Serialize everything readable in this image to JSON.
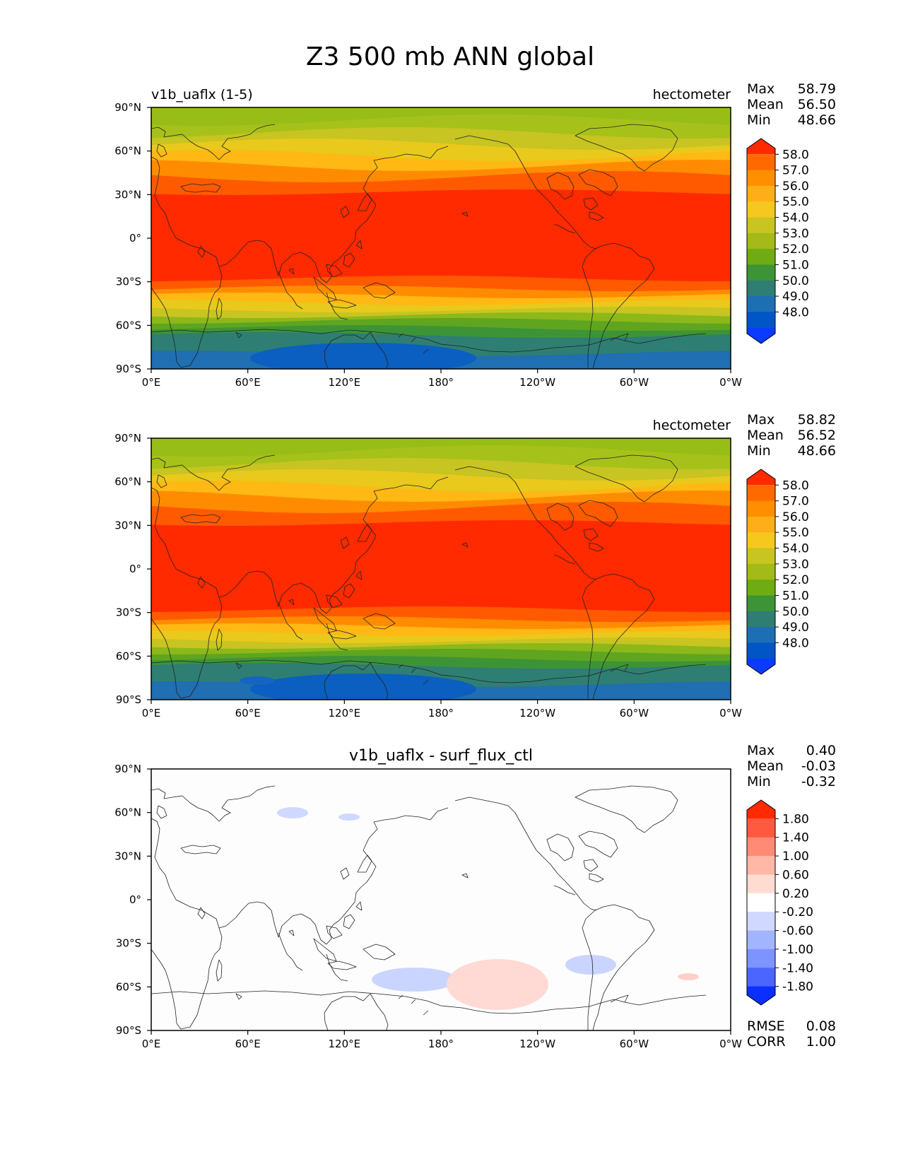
{
  "figure": {
    "title": "Z3 500 mb ANN global",
    "x_ticks": [
      "0°E",
      "60°E",
      "120°E",
      "180°",
      "120°W",
      "60°W",
      "0°W"
    ],
    "y_ticks": [
      "90°N",
      "60°N",
      "30°N",
      "0°",
      "30°S",
      "60°S",
      "90°S"
    ]
  },
  "panels": [
    {
      "left_title": "v1b_uaflx (1-5)",
      "center_title": "",
      "units": "hectometer",
      "stats": [
        {
          "label": "Max",
          "value": "58.79"
        },
        {
          "label": "Mean",
          "value": "56.50"
        },
        {
          "label": "Min",
          "value": "48.66"
        }
      ],
      "colorbar": {
        "labels": [
          "58.0",
          "57.0",
          "56.0",
          "55.0",
          "54.0",
          "53.0",
          "52.0",
          "51.0",
          "50.0",
          "49.0",
          "48.0"
        ],
        "colors": [
          "#ff2a00",
          "#ff6a00",
          "#ff8f00",
          "#ffae1a",
          "#f5c71f",
          "#c8c421",
          "#a3ba18",
          "#6fab12",
          "#3d9436",
          "#2e7e73",
          "#1c6fb4",
          "#0056c4",
          "#0b3bff"
        ]
      },
      "bottom_stats": []
    },
    {
      "left_title": "",
      "center_title": "",
      "units": "hectometer",
      "stats": [
        {
          "label": "Max",
          "value": "58.82"
        },
        {
          "label": "Mean",
          "value": "56.52"
        },
        {
          "label": "Min",
          "value": "48.66"
        }
      ],
      "colorbar": {
        "labels": [
          "58.0",
          "57.0",
          "56.0",
          "55.0",
          "54.0",
          "53.0",
          "52.0",
          "51.0",
          "50.0",
          "49.0",
          "48.0"
        ],
        "colors": [
          "#ff2a00",
          "#ff6a00",
          "#ff8f00",
          "#ffae1a",
          "#f5c71f",
          "#c8c421",
          "#a3ba18",
          "#6fab12",
          "#3d9436",
          "#2e7e73",
          "#1c6fb4",
          "#0056c4",
          "#0b3bff"
        ]
      },
      "bottom_stats": []
    },
    {
      "left_title": "",
      "center_title": "v1b_uaflx - surf_flux_ctl",
      "units": "",
      "stats": [
        {
          "label": "Max",
          "value": "0.40"
        },
        {
          "label": "Mean",
          "value": "-0.03"
        },
        {
          "label": "Min",
          "value": "-0.32"
        }
      ],
      "colorbar": {
        "labels": [
          "1.80",
          "1.40",
          "1.00",
          "0.60",
          "0.20",
          "-0.20",
          "-0.60",
          "-1.00",
          "-1.40",
          "-1.80"
        ],
        "colors": [
          "#ff2a00",
          "#ff5940",
          "#ff8a75",
          "#ffb8a6",
          "#ffdcd2",
          "#ffffff",
          "#d0d8ff",
          "#a3b4ff",
          "#7d93ff",
          "#4a66ff",
          "#0b2fff"
        ]
      },
      "bottom_stats": [
        {
          "label": "RMSE",
          "value": "0.08"
        },
        {
          "label": "CORR",
          "value": "1.00"
        }
      ]
    }
  ]
}
